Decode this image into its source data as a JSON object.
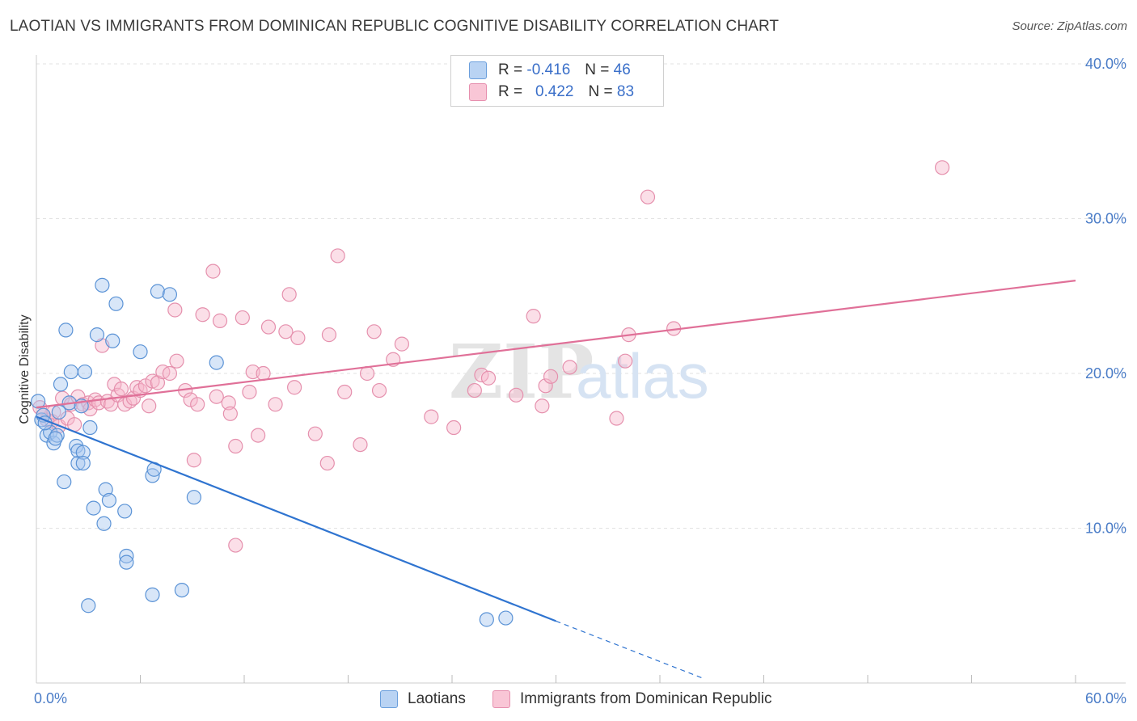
{
  "header": {
    "title": "LAOTIAN VS IMMIGRANTS FROM DOMINICAN REPUBLIC COGNITIVE DISABILITY CORRELATION CHART",
    "source": "Source: ZipAtlas.com"
  },
  "legend": {
    "rows": [
      {
        "r_label": "R =",
        "r_value": "-0.416",
        "n_label": "N =",
        "n_value": "46"
      },
      {
        "r_label": "R =",
        "r_value": "0.422",
        "n_label": "N =",
        "n_value": "83"
      }
    ]
  },
  "bottom_legend": {
    "series0": "Laotians",
    "series1": "Immigrants from Dominican Republic"
  },
  "watermark": {
    "zip": "ZIP",
    "atlas": "atlas"
  },
  "colors": {
    "laotian_fill": "#a9c8f0",
    "laotian_stroke": "#5b93d6",
    "laotian_line": "#2f74d0",
    "dominican_fill": "#f7b9cc",
    "dominican_stroke": "#e590ad",
    "dominican_line": "#e07098",
    "tick_text": "#4a7cc7",
    "grid": "#e2e2e2"
  },
  "chart_data": {
    "type": "scatter",
    "title": "LAOTIAN VS IMMIGRANTS FROM DOMINICAN REPUBLIC COGNITIVE DISABILITY CORRELATION CHART",
    "xlabel": "",
    "ylabel": "Cognitive Disability",
    "xlim": [
      0,
      60
    ],
    "ylim": [
      0,
      40
    ],
    "x_tick_labels": [
      {
        "value": 0,
        "label": "0.0%"
      },
      {
        "value": 60,
        "label": "60.0%"
      }
    ],
    "y_ticks": [
      {
        "value": 10,
        "label": "10.0%"
      },
      {
        "value": 20,
        "label": "20.0%"
      },
      {
        "value": 30,
        "label": "30.0%"
      },
      {
        "value": 40,
        "label": "40.0%"
      }
    ],
    "series": [
      {
        "name": "Laotians",
        "r": -0.416,
        "n": 46,
        "trend": {
          "x0": 0,
          "y0": 17.2,
          "x1": 30,
          "y1": 4.0,
          "dash_to_x": 38.5,
          "dash_to_y": 0.3
        },
        "points": [
          [
            0.1,
            18.2
          ],
          [
            0.3,
            17.0
          ],
          [
            0.4,
            17.3
          ],
          [
            0.6,
            16.0
          ],
          [
            0.8,
            16.2
          ],
          [
            1.0,
            15.5
          ],
          [
            1.2,
            16.0
          ],
          [
            1.3,
            17.5
          ],
          [
            1.4,
            19.3
          ],
          [
            1.7,
            22.8
          ],
          [
            1.6,
            13.0
          ],
          [
            1.9,
            18.1
          ],
          [
            2.0,
            20.1
          ],
          [
            2.3,
            15.3
          ],
          [
            2.4,
            15.0
          ],
          [
            2.4,
            14.2
          ],
          [
            2.6,
            17.9
          ],
          [
            2.7,
            14.9
          ],
          [
            2.7,
            14.2
          ],
          [
            2.8,
            20.1
          ],
          [
            3.0,
            5.0
          ],
          [
            3.1,
            16.5
          ],
          [
            3.3,
            11.3
          ],
          [
            3.5,
            22.5
          ],
          [
            3.8,
            25.7
          ],
          [
            3.9,
            10.3
          ],
          [
            4.0,
            12.5
          ],
          [
            4.2,
            11.8
          ],
          [
            4.4,
            22.1
          ],
          [
            4.6,
            24.5
          ],
          [
            5.1,
            11.1
          ],
          [
            5.2,
            8.2
          ],
          [
            5.2,
            7.8
          ],
          [
            6.0,
            21.4
          ],
          [
            6.7,
            13.4
          ],
          [
            6.8,
            13.8
          ],
          [
            6.7,
            5.7
          ],
          [
            7.0,
            25.3
          ],
          [
            7.7,
            25.1
          ],
          [
            8.4,
            6.0
          ],
          [
            9.1,
            12.0
          ],
          [
            10.4,
            20.7
          ],
          [
            26.0,
            4.1
          ],
          [
            27.1,
            4.2
          ],
          [
            0.5,
            16.8
          ],
          [
            1.1,
            15.8
          ]
        ]
      },
      {
        "name": "Immigrants from Dominican Republic",
        "r": 0.422,
        "n": 83,
        "trend": {
          "x0": 0,
          "y0": 17.8,
          "x1": 60,
          "y1": 26.0
        },
        "points": [
          [
            0.2,
            17.8
          ],
          [
            0.4,
            17.3
          ],
          [
            0.6,
            17.0
          ],
          [
            0.9,
            16.9
          ],
          [
            1.0,
            17.5
          ],
          [
            1.3,
            16.6
          ],
          [
            1.5,
            18.4
          ],
          [
            1.8,
            17.1
          ],
          [
            2.0,
            18.0
          ],
          [
            2.2,
            16.7
          ],
          [
            2.4,
            18.5
          ],
          [
            2.7,
            18.0
          ],
          [
            3.0,
            18.1
          ],
          [
            3.1,
            17.7
          ],
          [
            3.4,
            18.3
          ],
          [
            3.6,
            18.1
          ],
          [
            3.8,
            21.8
          ],
          [
            4.1,
            18.2
          ],
          [
            4.3,
            18.0
          ],
          [
            4.5,
            19.3
          ],
          [
            4.7,
            18.6
          ],
          [
            4.9,
            19.0
          ],
          [
            5.1,
            18.0
          ],
          [
            5.4,
            18.2
          ],
          [
            5.6,
            18.4
          ],
          [
            5.8,
            19.1
          ],
          [
            6.0,
            18.9
          ],
          [
            6.3,
            19.2
          ],
          [
            6.5,
            17.9
          ],
          [
            6.7,
            19.5
          ],
          [
            7.0,
            19.4
          ],
          [
            7.3,
            20.1
          ],
          [
            7.7,
            20.0
          ],
          [
            8.1,
            20.8
          ],
          [
            8.0,
            24.1
          ],
          [
            8.6,
            18.9
          ],
          [
            8.9,
            18.3
          ],
          [
            9.1,
            14.4
          ],
          [
            9.3,
            18.0
          ],
          [
            9.6,
            23.8
          ],
          [
            10.2,
            26.6
          ],
          [
            10.4,
            18.5
          ],
          [
            10.6,
            23.4
          ],
          [
            11.1,
            18.1
          ],
          [
            11.2,
            17.4
          ],
          [
            11.5,
            15.3
          ],
          [
            11.5,
            8.9
          ],
          [
            11.9,
            23.6
          ],
          [
            12.3,
            18.8
          ],
          [
            12.5,
            20.1
          ],
          [
            12.8,
            16.0
          ],
          [
            13.1,
            20.0
          ],
          [
            13.4,
            23.0
          ],
          [
            13.8,
            18.0
          ],
          [
            14.4,
            22.7
          ],
          [
            14.6,
            25.1
          ],
          [
            14.9,
            19.1
          ],
          [
            15.1,
            22.3
          ],
          [
            16.1,
            16.1
          ],
          [
            16.8,
            14.2
          ],
          [
            16.9,
            22.5
          ],
          [
            17.4,
            27.6
          ],
          [
            17.8,
            18.8
          ],
          [
            18.7,
            15.4
          ],
          [
            19.1,
            20.0
          ],
          [
            19.5,
            22.7
          ],
          [
            19.8,
            18.9
          ],
          [
            20.6,
            20.9
          ],
          [
            21.1,
            21.9
          ],
          [
            22.8,
            17.2
          ],
          [
            24.1,
            16.5
          ],
          [
            25.3,
            18.9
          ],
          [
            25.7,
            19.9
          ],
          [
            26.1,
            19.7
          ],
          [
            27.7,
            18.6
          ],
          [
            28.7,
            23.7
          ],
          [
            29.2,
            17.9
          ],
          [
            29.4,
            19.2
          ],
          [
            29.7,
            19.8
          ],
          [
            30.8,
            20.4
          ],
          [
            33.5,
            17.1
          ],
          [
            34.0,
            20.8
          ],
          [
            34.2,
            22.5
          ]
        ],
        "extra_points": [
          [
            35.3,
            31.4
          ],
          [
            36.8,
            22.9
          ],
          [
            52.3,
            33.3
          ]
        ]
      }
    ]
  }
}
